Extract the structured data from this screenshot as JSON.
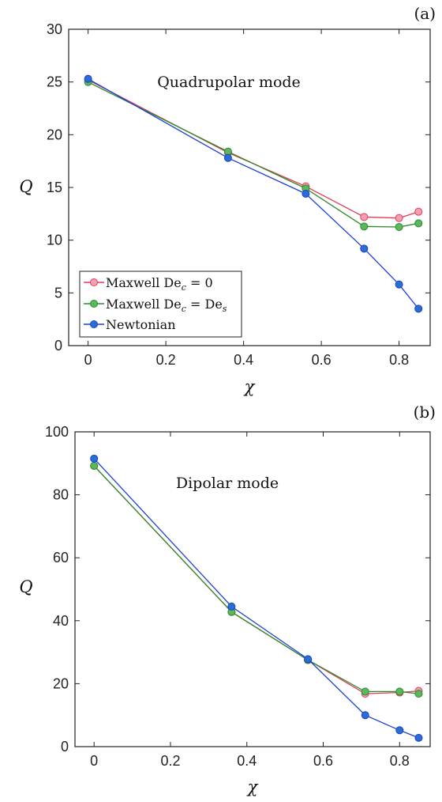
{
  "chart_data": [
    {
      "type": "line",
      "panel_label": "(a)",
      "annotation": "Quadrupolar mode",
      "xlabel": "χ",
      "ylabel": "Q",
      "xlim": [
        -0.05,
        0.88
      ],
      "ylim": [
        0,
        30
      ],
      "xticks": [
        0,
        0.2,
        0.4,
        0.6,
        0.8
      ],
      "xtick_labels": [
        "0",
        "0.2",
        "0.4",
        "0.6",
        "0.8"
      ],
      "yticks": [
        0,
        5,
        10,
        15,
        20,
        25,
        30
      ],
      "ytick_labels": [
        "0",
        "5",
        "10",
        "15",
        "20",
        "25",
        "30"
      ],
      "x": [
        0,
        0.36,
        0.56,
        0.71,
        0.8,
        0.85
      ],
      "legend_position": "lower-left",
      "series": [
        {
          "name": "Maxwell De_c = 0",
          "color": "#e03c5a",
          "fill": "#f4a0b0",
          "values": [
            25.2,
            18.3,
            15.1,
            12.2,
            12.1,
            12.7
          ]
        },
        {
          "name": "Maxwell De_c = De_s",
          "color": "#2c8a2c",
          "fill": "#5cb85c",
          "values": [
            25.0,
            18.4,
            14.9,
            11.3,
            11.25,
            11.6
          ]
        },
        {
          "name": "Newtonian",
          "color": "#1a3fd6",
          "fill": "#2a6fd0",
          "values": [
            25.3,
            17.8,
            14.4,
            9.2,
            5.8,
            3.5
          ]
        }
      ]
    },
    {
      "type": "line",
      "panel_label": "(b)",
      "annotation": "Dipolar mode",
      "xlabel": "χ",
      "ylabel": "Q",
      "xlim": [
        -0.05,
        0.88
      ],
      "ylim": [
        0,
        100
      ],
      "xticks": [
        0,
        0.2,
        0.4,
        0.6,
        0.8
      ],
      "xtick_labels": [
        "0",
        "0.2",
        "0.4",
        "0.6",
        "0.8"
      ],
      "yticks": [
        0,
        20,
        40,
        60,
        80,
        100
      ],
      "ytick_labels": [
        "0",
        "20",
        "40",
        "60",
        "80",
        "100"
      ],
      "x": [
        0,
        0.36,
        0.56,
        0.71,
        0.8,
        0.85
      ],
      "series": [
        {
          "name": "Maxwell De_c = 0",
          "color": "#e03c5a",
          "fill": "#f4a0b0",
          "values": [
            89.2,
            42.8,
            27.5,
            16.8,
            17.2,
            17.7
          ]
        },
        {
          "name": "Maxwell De_c = De_s",
          "color": "#2c8a2c",
          "fill": "#5cb85c",
          "values": [
            89.2,
            42.8,
            27.5,
            17.5,
            17.5,
            16.8
          ]
        },
        {
          "name": "Newtonian",
          "color": "#1a3fd6",
          "fill": "#2a6fd0",
          "values": [
            91.5,
            44.5,
            27.8,
            10.0,
            5.2,
            2.8
          ]
        }
      ]
    }
  ]
}
